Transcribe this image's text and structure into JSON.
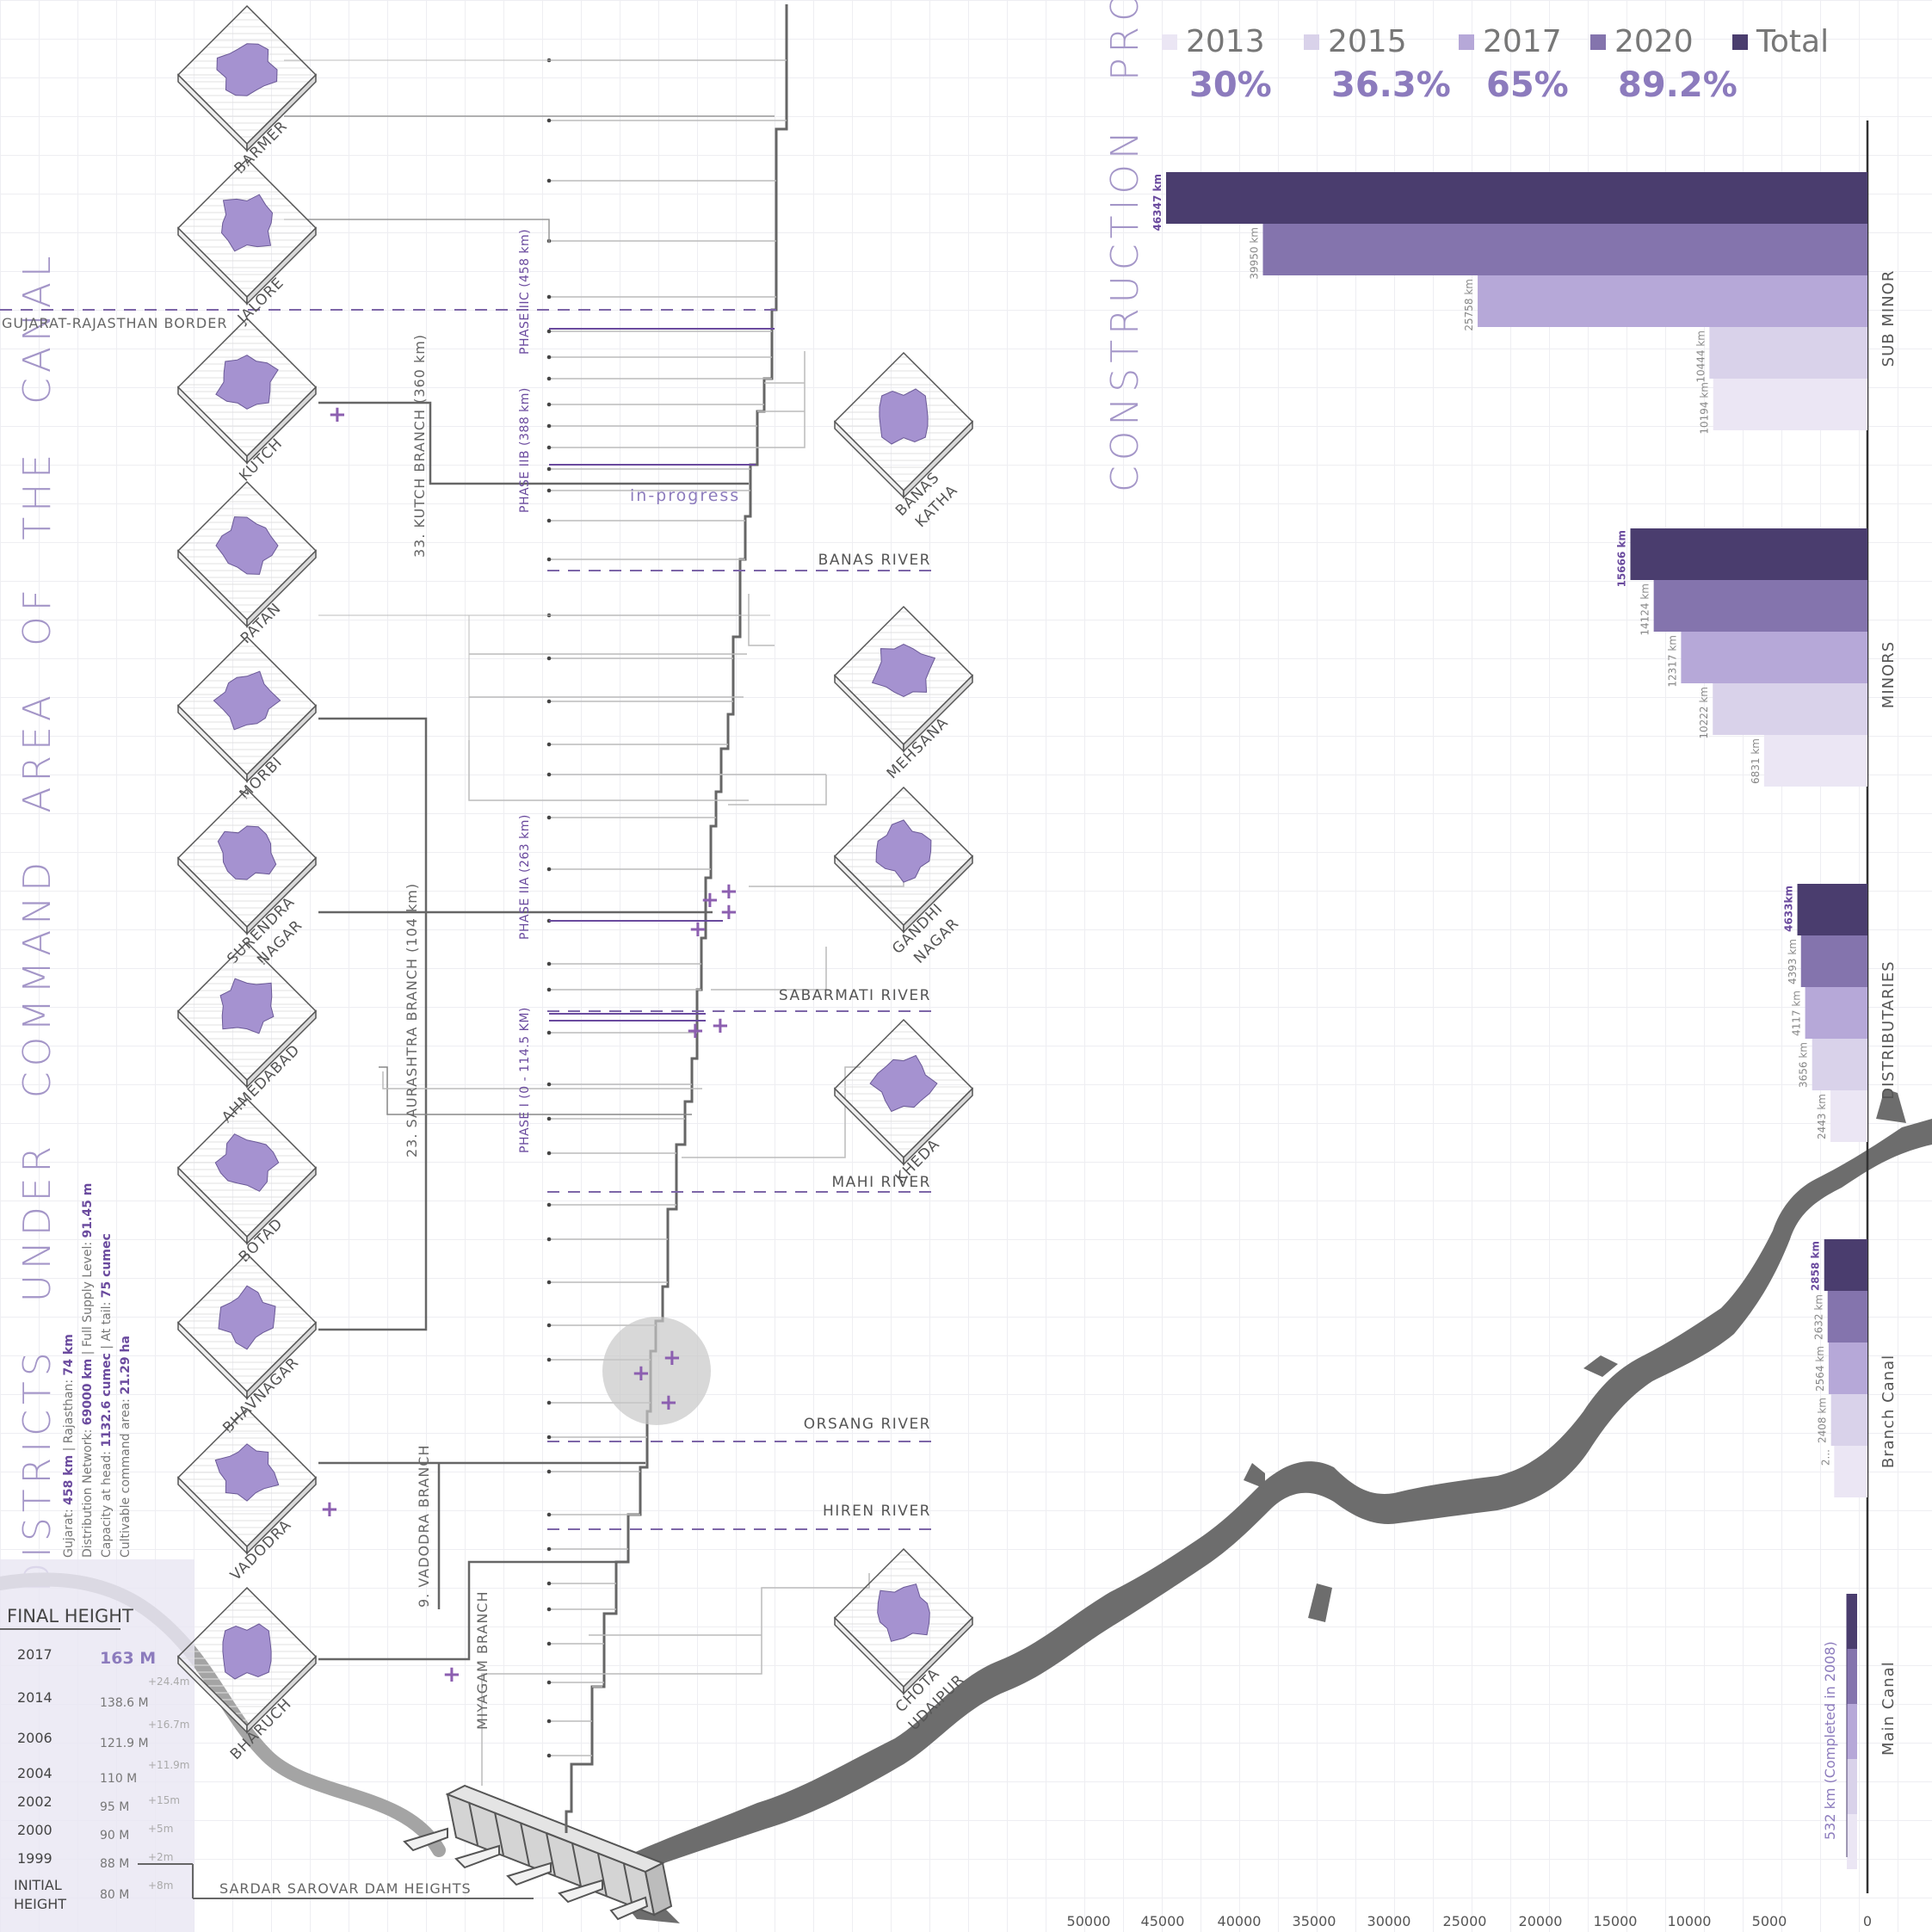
{
  "title_vertical": [
    "DISTRICTS",
    "UNDER",
    "COMMAND",
    "AREA",
    "OF",
    "THE",
    "CANAL"
  ],
  "stats": {
    "line1_prefix": "Gujarat: ",
    "line1_gujarat": "458 km",
    "line1_mid": " | Rajasthan: ",
    "line1_raj": "74 km",
    "line2_prefix": "Distribution Network: ",
    "line2_net": "69000 km",
    "line2_mid": " | Full Supply Level: ",
    "line2_fsl": "91.45 m",
    "line3_prefix": "Capacity at head: ",
    "line3_head": "1132.6 cumec",
    "line3_mid": " | At tail: ",
    "line3_tail": "75 cumec",
    "line4_prefix": "Cultivable command area: ",
    "line4_area": "21.29 ha"
  },
  "progress_title": [
    "CONSTRUCTION",
    "PROGRESS"
  ],
  "legend": [
    {
      "label": "2013",
      "pct": "30%",
      "color": "#ebe6f4"
    },
    {
      "label": "2015",
      "pct": "36.3%",
      "color": "#d9d2ea"
    },
    {
      "label": "2017",
      "pct": "65%",
      "color": "#b6a8d8"
    },
    {
      "label": "2020",
      "pct": "89.2%",
      "color": "#8474ad"
    },
    {
      "label": "Total",
      "pct": "",
      "color": "#4a3d6e"
    }
  ],
  "districts_left": [
    "BARMER",
    "JALORE",
    "KUTCH",
    "PATAN",
    "MORBI",
    "SURENDRA NAGAR",
    "AHMEDABAD",
    "BOTAD",
    "BHAVNAGAR",
    "VADODRA",
    "BHARUCH"
  ],
  "districts_right": [
    "BANAS KATHA",
    "MEHSANA",
    "GANDHI NAGAR",
    "KHEDA",
    "CHOTA UDAIPUR"
  ],
  "rivers": [
    "BANAS RIVER",
    "SABARMATI RIVER",
    "MAHI RIVER",
    "ORSANG RIVER",
    "HIREN RIVER"
  ],
  "border_label": "GUJARAT-RAJASTHAN BORDER",
  "phases": [
    "PHASE IIC (458 km)",
    "PHASE IIB (388 km)",
    "PHASE IIA  (263 km)",
    "PHASE I  (0 - 114.5 KM)"
  ],
  "in_progress": "in-progress",
  "branches": [
    "33. KUTCH BRANCH  (360 km)",
    "23. SAURASHTRA BRANCH  (104 km)",
    "9. VADODRA  BRANCH",
    "MIYAGAM BRANCH"
  ],
  "dam_label": "SARDAR SAROVAR DAM HEIGHTS",
  "heights": {
    "title": "FINAL HEIGHT",
    "rows": [
      {
        "year": "2017",
        "value": "163 M",
        "delta": "+24.4m"
      },
      {
        "year": "2014",
        "value": "138.6 M",
        "delta": "+16.7m"
      },
      {
        "year": "2006",
        "value": "121.9 M",
        "delta": "+11.9m"
      },
      {
        "year": "2004",
        "value": "110 M",
        "delta": "+15m"
      },
      {
        "year": "2002",
        "value": "95 M",
        "delta": "+5m"
      },
      {
        "year": "2000",
        "value": "90 M",
        "delta": "+2m"
      },
      {
        "year": "1999",
        "value": "88 M",
        "delta": "+8m"
      },
      {
        "year": "INITIAL HEIGHT",
        "value": "80 M",
        "delta": ""
      }
    ]
  },
  "chart_data": {
    "type": "bar",
    "orientation": "horizontal",
    "x_reversed": true,
    "xlim": [
      0,
      50000
    ],
    "x_ticks": [
      "50000",
      "45000",
      "40000",
      "35000",
      "30000",
      "25000",
      "20000",
      "15000",
      "10000",
      "5000",
      "0"
    ],
    "series_names": [
      "Total",
      "2020",
      "2017",
      "2015",
      "2013"
    ],
    "categories": [
      {
        "name": "SUB MINOR",
        "values": [
          46347,
          39950,
          25758,
          10444,
          10194
        ],
        "labels": [
          "46347 km",
          "39950 km",
          "25758 km",
          "10444 km",
          "10194 km"
        ]
      },
      {
        "name": "MINORS",
        "values": [
          15666,
          14124,
          12317,
          10222,
          6831
        ],
        "labels": [
          "15666 km",
          "14124 km",
          "12317 km",
          "10222 km",
          "6831 km"
        ]
      },
      {
        "name": "DISTRIBUTARIES",
        "values": [
          4633,
          4393,
          4117,
          3656,
          2443
        ],
        "labels": [
          "4633km",
          "4393 km",
          "4117 km",
          "3656 km",
          "2443 km"
        ]
      },
      {
        "name": "Branch Canal",
        "values": [
          2858,
          2632,
          2564,
          2408,
          2200
        ],
        "labels": [
          "2858 km",
          "2632 km",
          "2564 km",
          "2408 km",
          "2..."
        ]
      },
      {
        "name": "Main Canal",
        "values": [
          532,
          532,
          532,
          532,
          532
        ],
        "labels": [
          "532 km (Completed in 2008)"
        ]
      }
    ]
  }
}
